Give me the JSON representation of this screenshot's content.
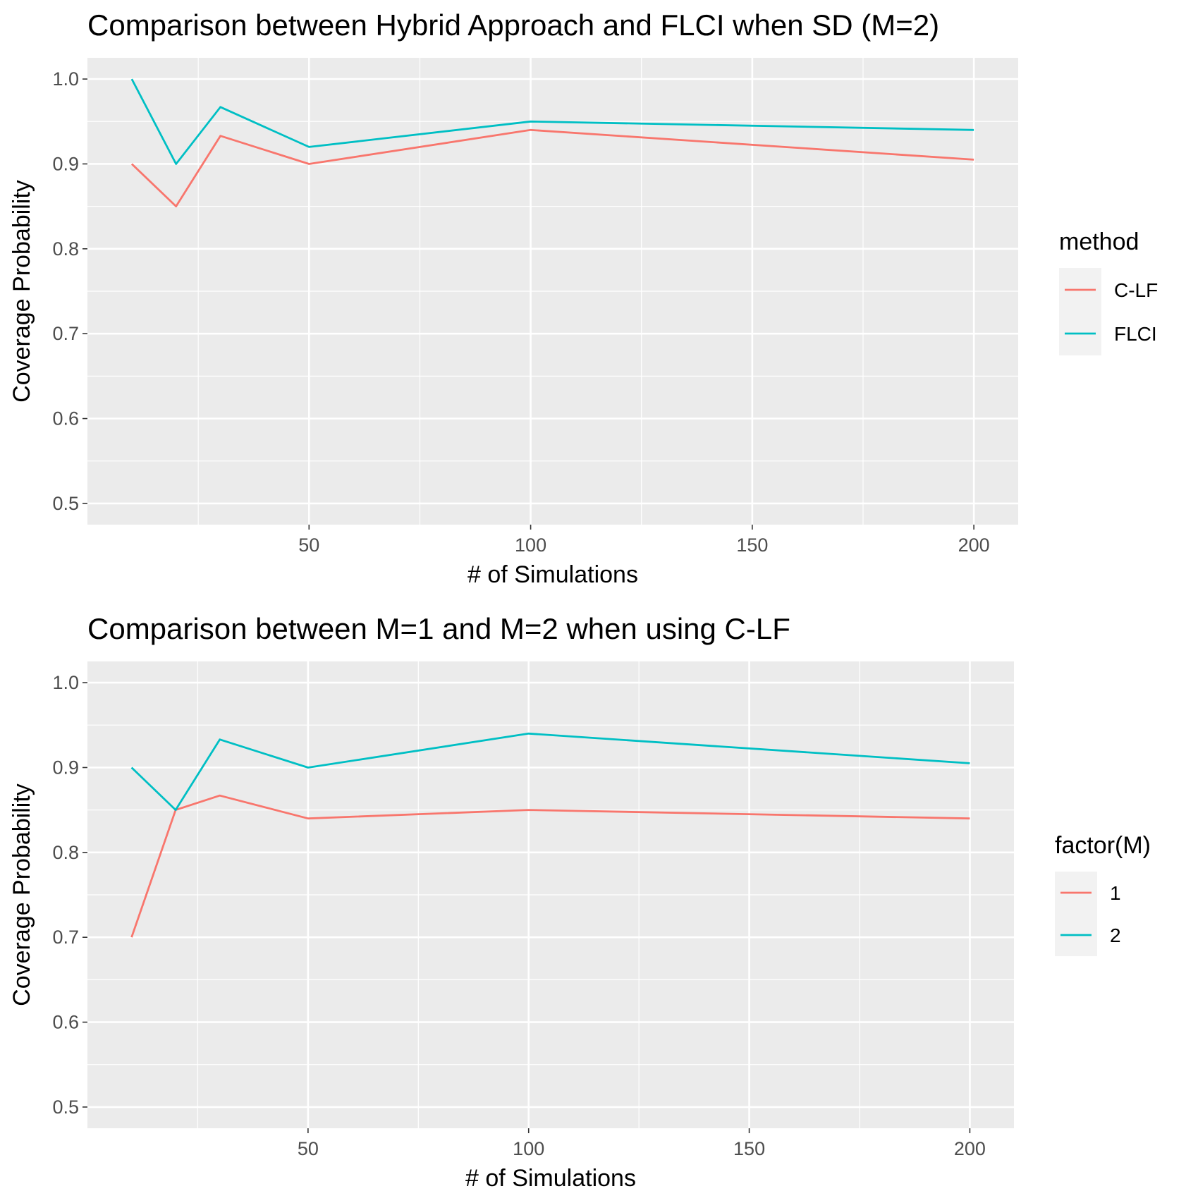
{
  "chart_data": [
    {
      "type": "line",
      "title": "Comparison between Hybrid Approach and FLCI when SD (M=2)",
      "xlabel": "# of Simulations",
      "ylabel": "Coverage Probability",
      "x": [
        10,
        20,
        30,
        50,
        100,
        200
      ],
      "xlim": [
        0,
        210
      ],
      "ylim": [
        0.475,
        1.025
      ],
      "xticks": [
        50,
        100,
        150,
        200
      ],
      "yticks": [
        0.5,
        0.6,
        0.7,
        0.8,
        0.9,
        1.0
      ],
      "ytick_labels": [
        "0.5",
        "0.6",
        "0.7",
        "0.8",
        "0.9",
        "1.0"
      ],
      "grid": true,
      "legend_title": "method",
      "legend_position": "right",
      "series": [
        {
          "name": "C-LF",
          "color": "#F8766D",
          "values": [
            0.9,
            0.85,
            0.933,
            0.9,
            0.94,
            0.905
          ]
        },
        {
          "name": "FLCI",
          "color": "#00BFC4",
          "values": [
            1.0,
            0.9,
            0.967,
            0.92,
            0.95,
            0.94
          ]
        }
      ]
    },
    {
      "type": "line",
      "title": "Comparison between M=1 and M=2 when using C-LF",
      "xlabel": "# of Simulations",
      "ylabel": "Coverage Probability",
      "x": [
        10,
        20,
        30,
        50,
        100,
        200
      ],
      "xlim": [
        0,
        210
      ],
      "ylim": [
        0.475,
        1.025
      ],
      "xticks": [
        50,
        100,
        150,
        200
      ],
      "yticks": [
        0.5,
        0.6,
        0.7,
        0.8,
        0.9,
        1.0
      ],
      "ytick_labels": [
        "0.5",
        "0.6",
        "0.7",
        "0.8",
        "0.9",
        "1.0"
      ],
      "grid": true,
      "legend_title": "factor(M)",
      "legend_position": "right",
      "series": [
        {
          "name": "1",
          "color": "#F8766D",
          "values": [
            0.7,
            0.85,
            0.867,
            0.84,
            0.85,
            0.84
          ]
        },
        {
          "name": "2",
          "color": "#00BFC4",
          "values": [
            0.9,
            0.85,
            0.933,
            0.9,
            0.94,
            0.905
          ]
        }
      ]
    }
  ]
}
